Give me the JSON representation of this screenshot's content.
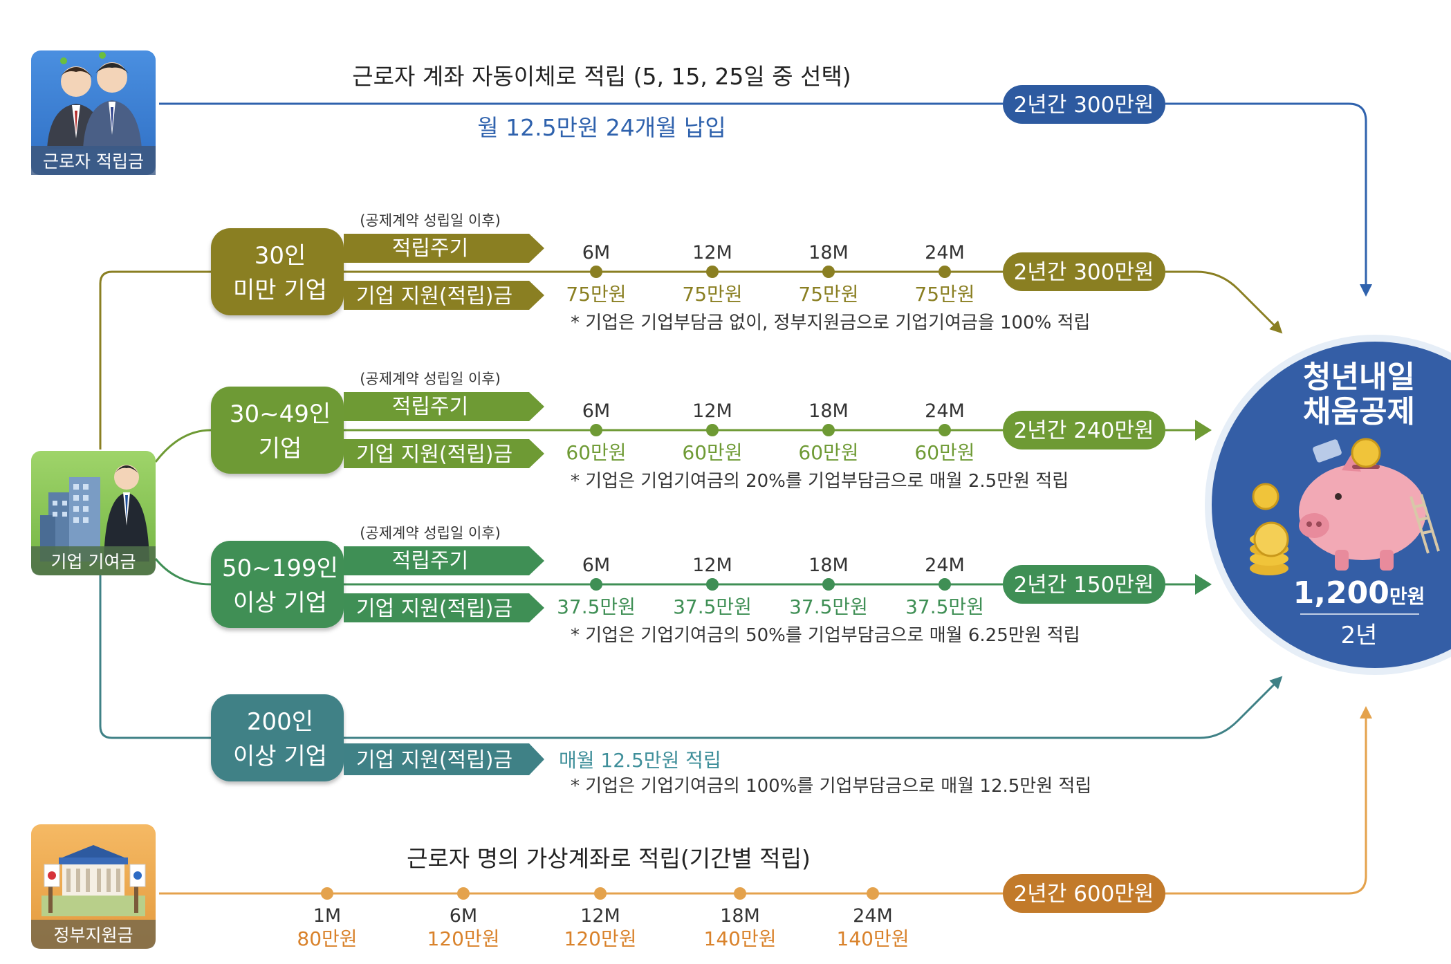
{
  "colors": {
    "worker": "#2f62ad",
    "worker_pill": "#2d5aa0",
    "t1": "#8a7f22",
    "t1_text": "#8a7f22",
    "t2": "#6e9a34",
    "t2_text": "#6e9a34",
    "t3": "#3f8f55",
    "t3_text": "#3f8f55",
    "t4": "#3f8186",
    "t4_text": "#3f8f9a",
    "gov": "#e4a24c",
    "gov_text": "#d9822b",
    "gov_pill": "#c27a2a",
    "circle": "#345ea6",
    "note": "#333333"
  },
  "sources": {
    "worker": {
      "label": "근로자 적립금",
      "icon": "workers-illustration-icon"
    },
    "company": {
      "label": "기업 기여금",
      "icon": "company-building-icon"
    },
    "government": {
      "label": "정부지원금",
      "icon": "government-building-icon"
    }
  },
  "worker_row": {
    "title": "근로자 계좌 자동이체로 적립 (5, 15, 25일 중 선택)",
    "subtitle": "월 12.5만원 24개월 납입",
    "total": "2년간 300만원"
  },
  "tiers": [
    {
      "name_line1": "30인",
      "name_line2": "미만 기업",
      "condition": "(공제계약 성립일 이후)",
      "cycle_label": "적립주기",
      "support_label": "기업 지원(적립)금",
      "milestones": [
        {
          "month": "6M",
          "amount": "75만원"
        },
        {
          "month": "12M",
          "amount": "75만원"
        },
        {
          "month": "18M",
          "amount": "75만원"
        },
        {
          "month": "24M",
          "amount": "75만원"
        }
      ],
      "total": "2년간 300만원",
      "note": "* 기업은 기업부담금 없이, 정부지원금으로 기업기여금을 100% 적립"
    },
    {
      "name_line1": "30~49인",
      "name_line2": "기업",
      "condition": "(공제계약 성립일 이후)",
      "cycle_label": "적립주기",
      "support_label": "기업 지원(적립)금",
      "milestones": [
        {
          "month": "6M",
          "amount": "60만원"
        },
        {
          "month": "12M",
          "amount": "60만원"
        },
        {
          "month": "18M",
          "amount": "60만원"
        },
        {
          "month": "24M",
          "amount": "60만원"
        }
      ],
      "total": "2년간 240만원",
      "note": "* 기업은 기업기여금의 20%를 기업부담금으로 매월 2.5만원 적립"
    },
    {
      "name_line1": "50~199인",
      "name_line2": "이상 기업",
      "condition": "(공제계약 성립일 이후)",
      "cycle_label": "적립주기",
      "support_label": "기업 지원(적립)금",
      "milestones": [
        {
          "month": "6M",
          "amount": "37.5만원"
        },
        {
          "month": "12M",
          "amount": "37.5만원"
        },
        {
          "month": "18M",
          "amount": "37.5만원"
        },
        {
          "month": "24M",
          "amount": "37.5만원"
        }
      ],
      "total": "2년간 150만원",
      "note": "* 기업은 기업기여금의 50%를 기업부담금으로 매월 6.25만원 적립"
    },
    {
      "name_line1": "200인",
      "name_line2": "이상 기업",
      "support_label": "기업 지원(적립)금",
      "monthly": "매월 12.5만원 적립",
      "note": "* 기업은 기업기여금의 100%를 기업부담금으로 매월 12.5만원 적립"
    }
  ],
  "gov_row": {
    "title": "근로자 명의 가상계좌로 적립(기간별 적립)",
    "milestones": [
      {
        "month": "1M",
        "amount": "80만원"
      },
      {
        "month": "6M",
        "amount": "120만원"
      },
      {
        "month": "12M",
        "amount": "120만원"
      },
      {
        "month": "18M",
        "amount": "140만원"
      },
      {
        "month": "24M",
        "amount": "140만원"
      }
    ],
    "total": "2년간 600만원"
  },
  "result": {
    "title_line1": "청년내일",
    "title_line2": "채움공제",
    "amount_num": "1,200",
    "amount_unit": "만원",
    "period": "2년",
    "icon": "piggy-bank-icon"
  }
}
